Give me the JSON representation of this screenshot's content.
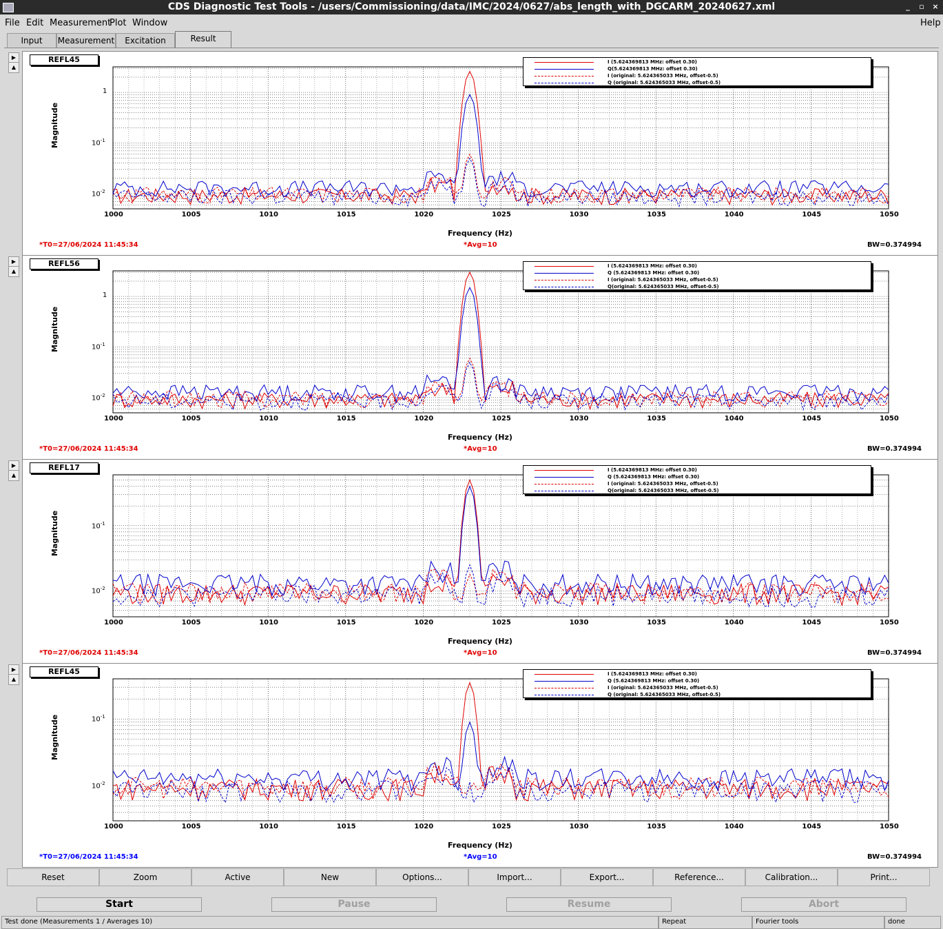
{
  "window": {
    "title": "CDS Diagnostic Test Tools - /users/Commissioning/data/IMC/2024/0627/abs_length_with_DGCARM_20240627.xml",
    "min": "_",
    "max": "▫",
    "close": "×"
  },
  "menu": {
    "file": "File",
    "edit": "Edit",
    "measurement": "Measurement",
    "plot": "Plot",
    "window": "Window",
    "help": "Help"
  },
  "tabs": [
    "Input",
    "Measurement",
    "Excitation",
    "Result"
  ],
  "colors": {
    "red": "#e00000",
    "blue": "#0000cc",
    "text_red": "#e00000",
    "text_blue": "#0000ff"
  },
  "panels": [
    {
      "channel": "REFL45",
      "ylabel": "Magnitude",
      "xlabel": "Frequency (Hz)",
      "t0": "*T0=27/06/2024 11:45:34",
      "avg": "*Avg=10",
      "bw": "BW=0.374994",
      "footer_color": "red",
      "yticks": [
        {
          "label": "1",
          "val": 1
        },
        {
          "label": "10",
          "sup": "-1",
          "val": 0.1
        },
        {
          "label": "10",
          "sup": "-2",
          "val": 0.01
        }
      ],
      "ylim": [
        0.005,
        3.2
      ],
      "legend": [
        "I (5.624369813 MHz: offset 0.30)",
        "Q(5.624369813 MHz: offset 0.30)",
        "I (original: 5.624365033 MHz, offset-0.5)",
        "Q (original: 5.624365033 MHz, offset-0.5)"
      ],
      "peaks": [
        2.6,
        0.9,
        0.06,
        0.05
      ]
    },
    {
      "channel": "REFL56",
      "ylabel": "Magnitude",
      "xlabel": "Frequency (Hz)",
      "t0": "*T0=27/06/2024 11:45:34",
      "avg": "*Avg=10",
      "bw": "BW=0.374994",
      "footer_color": "red",
      "yticks": [
        {
          "label": "1",
          "val": 1
        },
        {
          "label": "10",
          "sup": "-1",
          "val": 0.1
        },
        {
          "label": "10",
          "sup": "-2",
          "val": 0.01
        }
      ],
      "ylim": [
        0.005,
        3.2
      ],
      "legend": [
        "I (5.624369813 MHz: offset 0.30)",
        "Q (5.624369813 MHz: offset 0.30)",
        "I (original: 5.624365033 MHz, offset-0.5)",
        "Q(original: 5.624365033 MHz, offset-0.5)"
      ],
      "peaks": [
        3.0,
        1.5,
        0.06,
        0.05
      ]
    },
    {
      "channel": "REFL17",
      "ylabel": "Magnitude",
      "xlabel": "Frequency (Hz)",
      "t0": "*T0=27/06/2024 11:45:34",
      "avg": "*Avg=10",
      "bw": "BW=0.374994",
      "footer_color": "red",
      "yticks": [
        {
          "label": "10",
          "sup": "-1",
          "val": 0.1
        },
        {
          "label": "10",
          "sup": "-2",
          "val": 0.01
        }
      ],
      "ylim": [
        0.004,
        0.6
      ],
      "legend": [
        "I (5.624369813 MHz: offset 0.30)",
        "Q (5.624369813 MHz: offset 0.30)",
        "I (original: 5.624365033 MHz, offset-0.5)",
        "Q(original: 5.624365033 MHz, offset-0.5)"
      ],
      "peaks": [
        0.5,
        0.4,
        0.018,
        0.025
      ]
    },
    {
      "channel": "REFL45",
      "ylabel": "Magnitude",
      "xlabel": "Frequency (Hz)",
      "t0": "*T0=27/06/2024 11:45:34",
      "avg": "*Avg=10",
      "bw": "BW=0.374994",
      "footer_color": "blue",
      "yticks": [
        {
          "label": "10",
          "sup": "-1",
          "val": 0.1
        },
        {
          "label": "10",
          "sup": "-2",
          "val": 0.01
        }
      ],
      "ylim": [
        0.003,
        0.4
      ],
      "legend": [
        "I (5.624369813 MHz: offset 0.30)",
        "Q (5.624369813 MHz: offset 0.30)",
        "I (original: 5.624365033 MHz, offset-0.5)",
        "Q (original: 5.624365033 MHz, offset-0.5)"
      ],
      "peaks": [
        0.35,
        0.09,
        0.009,
        0.008
      ]
    }
  ],
  "xticks": [
    "1000",
    "1005",
    "1010",
    "1015",
    "1020",
    "1025",
    "1030",
    "1035",
    "1040",
    "1045",
    "1050"
  ],
  "buttons": [
    "Reset",
    "Zoom",
    "Active",
    "New",
    "Options...",
    "Import...",
    "Export...",
    "Reference...",
    "Calibration...",
    "Print..."
  ],
  "main_buttons": {
    "start": "Start",
    "pause": "Pause",
    "resume": "Resume",
    "abort": "Abort"
  },
  "status": {
    "msg": "Test done (Measurements 1 / Averages 10)",
    "repeat": "Repeat",
    "fourier": "Fourier tools",
    "done": "done"
  }
}
